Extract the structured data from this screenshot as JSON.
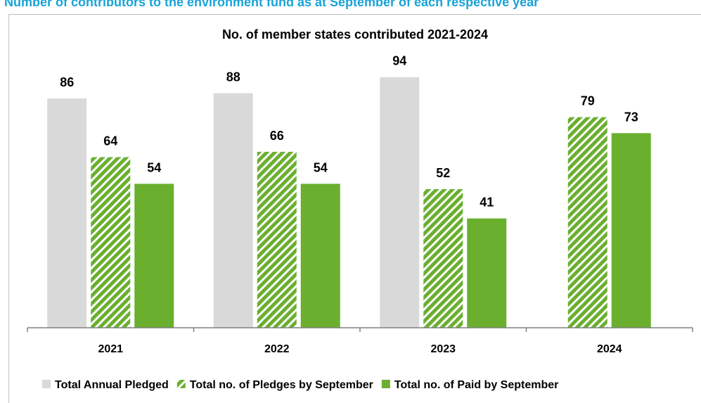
{
  "page": {
    "header_title": "Number of contributors to the environment fund as at September of each respective year"
  },
  "chart_data": {
    "type": "bar",
    "title": "No. of member states contributed 2021-2024",
    "categories": [
      "2021",
      "2022",
      "2023",
      "2024"
    ],
    "series": [
      {
        "name": "Total Annual Pledged",
        "values": [
          86,
          88,
          94,
          null
        ],
        "color": "#d9d9d9",
        "pattern": "solid"
      },
      {
        "name": "Total no. of Pledges by September",
        "values": [
          64,
          66,
          52,
          79
        ],
        "color": "#6aaf2e",
        "pattern": "diagonal-stripes"
      },
      {
        "name": "Total no. of Paid by September",
        "values": [
          54,
          54,
          41,
          73
        ],
        "color": "#6aaf2e",
        "pattern": "solid"
      }
    ],
    "ylim": [
      0,
      100
    ],
    "data_labels": true,
    "grid": false,
    "legend_position": "bottom"
  }
}
